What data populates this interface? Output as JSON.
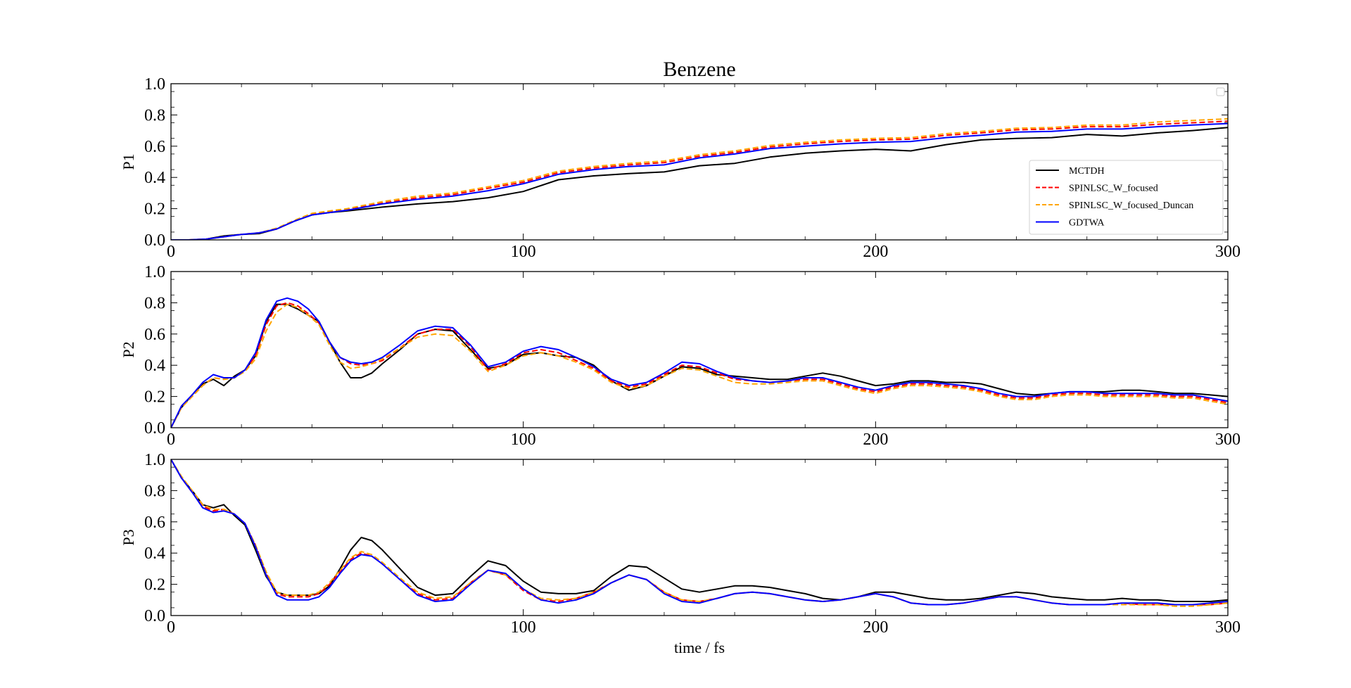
{
  "chart_data": {
    "type": "line",
    "title": "Benzene",
    "xlabel": "time / fs",
    "xlim": [
      0,
      300
    ],
    "x_ticks": [
      0,
      100,
      200,
      300
    ],
    "y_ticks": [
      0.0,
      0.2,
      0.4,
      0.6,
      0.8,
      1.0
    ],
    "y_tick_labels": [
      "0.0",
      "0.2",
      "0.4",
      "0.6",
      "0.8",
      "1.0"
    ],
    "legend_position": "lower-right",
    "grid": false,
    "series_styles": [
      {
        "name": "MCTDH",
        "color": "#000000",
        "dash": "solid"
      },
      {
        "name": "SPINLSC_W_focused",
        "color": "#ff0000",
        "dash": "dashed"
      },
      {
        "name": "SPINLSC_W_focused_Duncan",
        "color": "#ffa500",
        "dash": "dashed"
      },
      {
        "name": "GDTWA",
        "color": "#0000ff",
        "dash": "solid"
      }
    ],
    "panels": [
      {
        "ylabel": "P1",
        "ylim": [
          0,
          1
        ],
        "x": [
          0,
          5,
          10,
          15,
          20,
          25,
          30,
          35,
          40,
          45,
          50,
          60,
          70,
          80,
          90,
          100,
          110,
          120,
          130,
          140,
          150,
          160,
          170,
          180,
          190,
          200,
          210,
          220,
          230,
          240,
          250,
          260,
          270,
          280,
          290,
          300
        ],
        "series": [
          {
            "values": [
              0.0,
              0.0,
              0.005,
              0.025,
              0.035,
              0.04,
              0.07,
              0.12,
              0.16,
              0.175,
              0.185,
              0.21,
              0.23,
              0.245,
              0.27,
              0.31,
              0.385,
              0.41,
              0.425,
              0.435,
              0.475,
              0.49,
              0.53,
              0.555,
              0.57,
              0.58,
              0.57,
              0.61,
              0.64,
              0.65,
              0.655,
              0.675,
              0.665,
              0.685,
              0.7,
              0.72
            ]
          },
          {
            "values": [
              0.0,
              0.0,
              0.005,
              0.02,
              0.035,
              0.045,
              0.07,
              0.12,
              0.165,
              0.18,
              0.195,
              0.235,
              0.27,
              0.29,
              0.33,
              0.37,
              0.43,
              0.46,
              0.48,
              0.495,
              0.535,
              0.56,
              0.595,
              0.615,
              0.63,
              0.64,
              0.645,
              0.67,
              0.685,
              0.705,
              0.71,
              0.725,
              0.725,
              0.74,
              0.75,
              0.76
            ]
          },
          {
            "values": [
              0.0,
              0.0,
              0.005,
              0.02,
              0.035,
              0.045,
              0.075,
              0.125,
              0.17,
              0.185,
              0.2,
              0.245,
              0.28,
              0.3,
              0.34,
              0.38,
              0.44,
              0.47,
              0.49,
              0.505,
              0.545,
              0.57,
              0.605,
              0.625,
              0.64,
              0.65,
              0.655,
              0.68,
              0.695,
              0.715,
              0.72,
              0.735,
              0.735,
              0.755,
              0.765,
              0.775
            ]
          },
          {
            "values": [
              0.0,
              0.0,
              0.005,
              0.02,
              0.035,
              0.045,
              0.07,
              0.12,
              0.16,
              0.175,
              0.19,
              0.23,
              0.26,
              0.28,
              0.315,
              0.36,
              0.42,
              0.45,
              0.47,
              0.48,
              0.525,
              0.55,
              0.585,
              0.6,
              0.615,
              0.625,
              0.63,
              0.655,
              0.67,
              0.69,
              0.695,
              0.71,
              0.71,
              0.725,
              0.735,
              0.745
            ]
          }
        ]
      },
      {
        "ylabel": "P2",
        "ylim": [
          0,
          1
        ],
        "x": [
          0,
          3,
          6,
          9,
          12,
          15,
          18,
          21,
          24,
          27,
          30,
          33,
          36,
          39,
          42,
          45,
          48,
          51,
          54,
          57,
          60,
          65,
          70,
          75,
          80,
          85,
          90,
          95,
          100,
          105,
          110,
          115,
          120,
          125,
          130,
          135,
          140,
          145,
          150,
          155,
          160,
          165,
          170,
          175,
          180,
          185,
          190,
          195,
          200,
          205,
          210,
          215,
          220,
          225,
          230,
          235,
          240,
          245,
          250,
          255,
          260,
          265,
          270,
          275,
          280,
          285,
          290,
          295,
          300
        ],
        "series": [
          {
            "values": [
              0.0,
              0.13,
              0.21,
              0.28,
              0.31,
              0.27,
              0.33,
              0.37,
              0.46,
              0.68,
              0.79,
              0.79,
              0.76,
              0.72,
              0.68,
              0.55,
              0.42,
              0.32,
              0.32,
              0.35,
              0.41,
              0.5,
              0.6,
              0.63,
              0.62,
              0.5,
              0.38,
              0.4,
              0.47,
              0.48,
              0.46,
              0.45,
              0.4,
              0.3,
              0.24,
              0.27,
              0.33,
              0.39,
              0.38,
              0.34,
              0.33,
              0.32,
              0.31,
              0.31,
              0.33,
              0.35,
              0.33,
              0.3,
              0.27,
              0.28,
              0.3,
              0.3,
              0.29,
              0.29,
              0.28,
              0.25,
              0.22,
              0.21,
              0.22,
              0.23,
              0.23,
              0.23,
              0.24,
              0.24,
              0.23,
              0.22,
              0.22,
              0.21,
              0.2
            ]
          },
          {
            "values": [
              0.0,
              0.13,
              0.2,
              0.27,
              0.32,
              0.31,
              0.32,
              0.37,
              0.46,
              0.66,
              0.78,
              0.8,
              0.78,
              0.73,
              0.67,
              0.55,
              0.45,
              0.41,
              0.4,
              0.41,
              0.43,
              0.51,
              0.6,
              0.63,
              0.63,
              0.52,
              0.37,
              0.41,
              0.48,
              0.5,
              0.48,
              0.43,
              0.38,
              0.3,
              0.26,
              0.28,
              0.34,
              0.4,
              0.39,
              0.35,
              0.31,
              0.3,
              0.29,
              0.3,
              0.31,
              0.31,
              0.28,
              0.25,
              0.23,
              0.26,
              0.28,
              0.28,
              0.27,
              0.26,
              0.24,
              0.21,
              0.19,
              0.19,
              0.21,
              0.22,
              0.22,
              0.21,
              0.21,
              0.21,
              0.21,
              0.2,
              0.2,
              0.18,
              0.16
            ]
          },
          {
            "values": [
              0.0,
              0.13,
              0.2,
              0.27,
              0.32,
              0.31,
              0.32,
              0.36,
              0.44,
              0.62,
              0.74,
              0.79,
              0.77,
              0.72,
              0.66,
              0.53,
              0.42,
              0.38,
              0.39,
              0.41,
              0.44,
              0.51,
              0.58,
              0.6,
              0.59,
              0.49,
              0.36,
              0.4,
              0.46,
              0.48,
              0.46,
              0.42,
              0.37,
              0.29,
              0.25,
              0.27,
              0.33,
              0.38,
              0.37,
              0.33,
              0.29,
              0.28,
              0.28,
              0.29,
              0.3,
              0.3,
              0.27,
              0.24,
              0.22,
              0.25,
              0.27,
              0.27,
              0.26,
              0.25,
              0.23,
              0.2,
              0.18,
              0.18,
              0.2,
              0.21,
              0.21,
              0.2,
              0.2,
              0.2,
              0.2,
              0.19,
              0.19,
              0.17,
              0.15
            ]
          },
          {
            "values": [
              0.0,
              0.14,
              0.21,
              0.29,
              0.34,
              0.32,
              0.32,
              0.37,
              0.48,
              0.69,
              0.81,
              0.83,
              0.81,
              0.76,
              0.68,
              0.55,
              0.45,
              0.42,
              0.41,
              0.42,
              0.45,
              0.53,
              0.62,
              0.65,
              0.64,
              0.53,
              0.39,
              0.42,
              0.49,
              0.52,
              0.5,
              0.45,
              0.39,
              0.31,
              0.27,
              0.29,
              0.35,
              0.42,
              0.41,
              0.36,
              0.32,
              0.3,
              0.29,
              0.3,
              0.32,
              0.32,
              0.29,
              0.26,
              0.24,
              0.27,
              0.29,
              0.29,
              0.28,
              0.27,
              0.25,
              0.22,
              0.2,
              0.2,
              0.22,
              0.23,
              0.23,
              0.22,
              0.22,
              0.22,
              0.22,
              0.21,
              0.21,
              0.19,
              0.17
            ]
          }
        ]
      },
      {
        "ylabel": "P3",
        "ylim": [
          0,
          1
        ],
        "x": [
          0,
          3,
          6,
          9,
          12,
          15,
          18,
          21,
          24,
          27,
          30,
          33,
          36,
          39,
          42,
          45,
          48,
          51,
          54,
          57,
          60,
          65,
          70,
          75,
          80,
          85,
          90,
          95,
          100,
          105,
          110,
          115,
          120,
          125,
          130,
          135,
          140,
          145,
          150,
          155,
          160,
          165,
          170,
          175,
          180,
          185,
          190,
          195,
          200,
          205,
          210,
          215,
          220,
          225,
          230,
          235,
          240,
          245,
          250,
          255,
          260,
          265,
          270,
          275,
          280,
          285,
          290,
          295,
          300
        ],
        "series": [
          {
            "values": [
              1.0,
              0.88,
              0.8,
              0.71,
              0.69,
              0.71,
              0.64,
              0.58,
              0.42,
              0.25,
              0.15,
              0.13,
              0.13,
              0.13,
              0.14,
              0.19,
              0.3,
              0.42,
              0.5,
              0.48,
              0.42,
              0.3,
              0.18,
              0.13,
              0.14,
              0.25,
              0.35,
              0.32,
              0.22,
              0.15,
              0.14,
              0.14,
              0.16,
              0.25,
              0.32,
              0.31,
              0.24,
              0.17,
              0.15,
              0.17,
              0.19,
              0.19,
              0.18,
              0.16,
              0.14,
              0.11,
              0.1,
              0.12,
              0.15,
              0.15,
              0.13,
              0.11,
              0.1,
              0.1,
              0.11,
              0.13,
              0.15,
              0.14,
              0.12,
              0.11,
              0.1,
              0.1,
              0.11,
              0.1,
              0.1,
              0.09,
              0.09,
              0.09,
              0.1
            ]
          },
          {
            "values": [
              1.0,
              0.88,
              0.79,
              0.7,
              0.67,
              0.68,
              0.65,
              0.59,
              0.45,
              0.27,
              0.14,
              0.12,
              0.12,
              0.12,
              0.14,
              0.2,
              0.28,
              0.36,
              0.4,
              0.38,
              0.33,
              0.23,
              0.14,
              0.1,
              0.11,
              0.21,
              0.29,
              0.26,
              0.16,
              0.1,
              0.09,
              0.11,
              0.15,
              0.21,
              0.26,
              0.23,
              0.15,
              0.1,
              0.09,
              0.11,
              0.14,
              0.15,
              0.14,
              0.12,
              0.1,
              0.09,
              0.1,
              0.12,
              0.14,
              0.12,
              0.08,
              0.07,
              0.07,
              0.08,
              0.1,
              0.12,
              0.12,
              0.1,
              0.08,
              0.07,
              0.07,
              0.07,
              0.08,
              0.07,
              0.07,
              0.07,
              0.07,
              0.07,
              0.08
            ]
          },
          {
            "values": [
              1.0,
              0.89,
              0.8,
              0.71,
              0.68,
              0.68,
              0.65,
              0.59,
              0.45,
              0.28,
              0.15,
              0.13,
              0.13,
              0.13,
              0.15,
              0.21,
              0.29,
              0.37,
              0.41,
              0.39,
              0.34,
              0.24,
              0.15,
              0.11,
              0.12,
              0.21,
              0.29,
              0.26,
              0.17,
              0.11,
              0.1,
              0.11,
              0.15,
              0.21,
              0.26,
              0.23,
              0.15,
              0.1,
              0.09,
              0.11,
              0.14,
              0.15,
              0.14,
              0.12,
              0.1,
              0.09,
              0.1,
              0.12,
              0.14,
              0.12,
              0.08,
              0.07,
              0.07,
              0.08,
              0.1,
              0.12,
              0.12,
              0.1,
              0.08,
              0.07,
              0.07,
              0.07,
              0.07,
              0.07,
              0.07,
              0.06,
              0.06,
              0.07,
              0.08
            ]
          },
          {
            "values": [
              1.0,
              0.88,
              0.79,
              0.69,
              0.66,
              0.67,
              0.65,
              0.59,
              0.44,
              0.26,
              0.13,
              0.1,
              0.1,
              0.1,
              0.12,
              0.18,
              0.27,
              0.35,
              0.39,
              0.38,
              0.33,
              0.23,
              0.13,
              0.09,
              0.1,
              0.2,
              0.29,
              0.27,
              0.17,
              0.1,
              0.08,
              0.1,
              0.14,
              0.21,
              0.26,
              0.23,
              0.14,
              0.09,
              0.08,
              0.11,
              0.14,
              0.15,
              0.14,
              0.12,
              0.1,
              0.09,
              0.1,
              0.12,
              0.14,
              0.12,
              0.08,
              0.07,
              0.07,
              0.08,
              0.1,
              0.12,
              0.12,
              0.1,
              0.08,
              0.07,
              0.07,
              0.07,
              0.08,
              0.08,
              0.08,
              0.07,
              0.07,
              0.08,
              0.09
            ]
          }
        ]
      }
    ]
  }
}
